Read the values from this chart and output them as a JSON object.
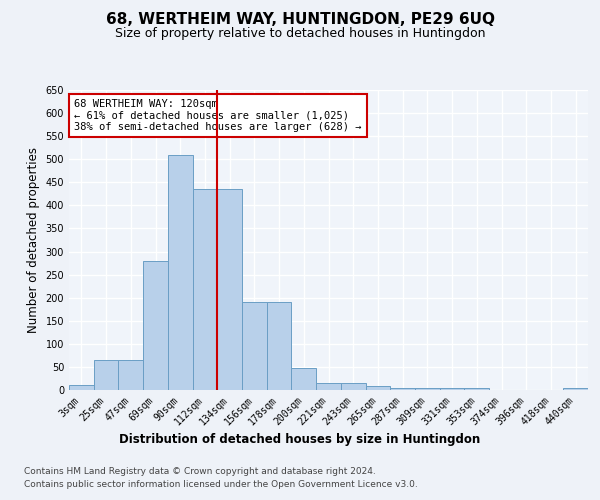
{
  "title": "68, WERTHEIM WAY, HUNTINGDON, PE29 6UQ",
  "subtitle": "Size of property relative to detached houses in Huntingdon",
  "xlabel": "Distribution of detached houses by size in Huntingdon",
  "ylabel": "Number of detached properties",
  "categories": [
    "3sqm",
    "25sqm",
    "47sqm",
    "69sqm",
    "90sqm",
    "112sqm",
    "134sqm",
    "156sqm",
    "178sqm",
    "200sqm",
    "221sqm",
    "243sqm",
    "265sqm",
    "287sqm",
    "309sqm",
    "331sqm",
    "353sqm",
    "374sqm",
    "396sqm",
    "418sqm",
    "440sqm"
  ],
  "values": [
    10,
    65,
    65,
    280,
    510,
    435,
    435,
    190,
    190,
    47,
    15,
    15,
    8,
    5,
    5,
    5,
    5,
    0,
    0,
    0,
    5
  ],
  "bar_color": "#b8d0ea",
  "bar_edge_color": "#6a9ec5",
  "vline_color": "#cc0000",
  "annotation_text": "68 WERTHEIM WAY: 120sqm\n← 61% of detached houses are smaller (1,025)\n38% of semi-detached houses are larger (628) →",
  "annotation_box_color": "#cc0000",
  "annotation_box_fill": "#ffffff",
  "ylim": [
    0,
    650
  ],
  "yticks": [
    0,
    50,
    100,
    150,
    200,
    250,
    300,
    350,
    400,
    450,
    500,
    550,
    600,
    650
  ],
  "footer_line1": "Contains HM Land Registry data © Crown copyright and database right 2024.",
  "footer_line2": "Contains public sector information licensed under the Open Government Licence v3.0.",
  "bg_color": "#eef2f8",
  "plot_bg_color": "#f0f4fa",
  "grid_color": "#d8e4f0",
  "title_fontsize": 11,
  "subtitle_fontsize": 9,
  "axis_label_fontsize": 8.5,
  "tick_fontsize": 7,
  "footer_fontsize": 6.5
}
